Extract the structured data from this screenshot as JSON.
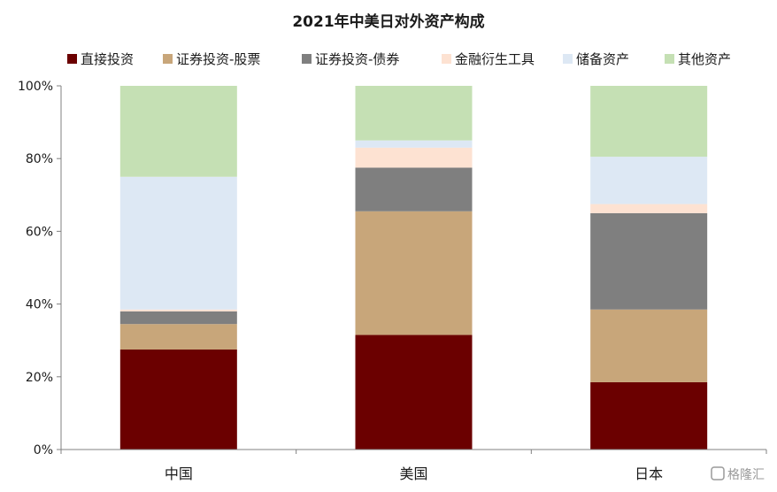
{
  "chart_data": {
    "type": "bar",
    "stacked": true,
    "title": "2021年中美日对外资产构成",
    "categories": [
      "中国",
      "美国",
      "日本"
    ],
    "series": [
      {
        "name": "直接投资",
        "color": "#6b0000",
        "values": [
          27.5,
          31.5,
          18.5
        ]
      },
      {
        "name": "证券投资-股票",
        "color": "#c8a67a",
        "values": [
          7.0,
          34.0,
          20.0
        ]
      },
      {
        "name": "证券投资-债券",
        "color": "#7f7f7f",
        "values": [
          3.5,
          12.0,
          26.5
        ]
      },
      {
        "name": "金融衍生工具",
        "color": "#fde2d2",
        "values": [
          0.5,
          5.5,
          2.5
        ]
      },
      {
        "name": "储备资产",
        "color": "#dde8f4",
        "values": [
          36.5,
          2.0,
          13.0
        ]
      },
      {
        "name": "其他资产",
        "color": "#c5e0b4",
        "values": [
          25.0,
          15.0,
          19.5
        ]
      }
    ],
    "ylim": [
      0,
      100
    ],
    "yticks": [
      "0%",
      "20%",
      "40%",
      "60%",
      "80%",
      "100%"
    ],
    "xlabel": "",
    "ylabel": "",
    "grid": false,
    "legend_position": "top"
  },
  "watermark": {
    "text": "格隆汇"
  }
}
